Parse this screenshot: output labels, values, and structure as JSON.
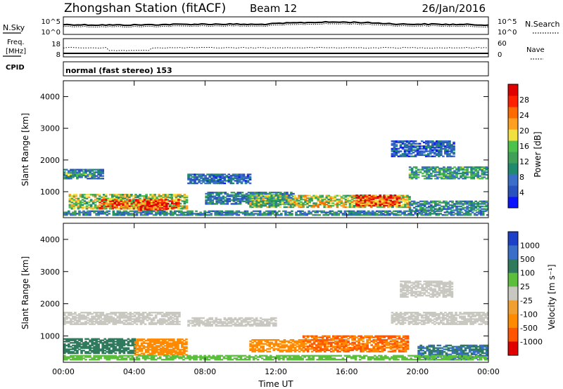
{
  "header": {
    "title": "Zhongshan Station (fitACF)",
    "beam": "Beam 12",
    "date": "26/Jan/2016"
  },
  "noise_panel": {
    "left_label": "N.Sky",
    "right_label": "N.Search",
    "left_ticks": [
      "10^5",
      "10^0"
    ],
    "right_ticks": [
      "10^5",
      "10^0"
    ]
  },
  "freq_panel": {
    "left_label_1": "Freq.",
    "left_label_2": "[MHz]",
    "right_label": "Nave",
    "left_ticks": [
      "18",
      "8"
    ],
    "right_ticks": [
      "60",
      "0"
    ]
  },
  "cpid": {
    "label": "CPID",
    "text": "normal (fast stereo) 153"
  },
  "colors": {
    "power_scale": [
      "#0a14ff",
      "#2a52be",
      "#3a6ec8",
      "#1f8a6e",
      "#3fa058",
      "#4cc24c",
      "#f0e040",
      "#ffa020",
      "#ff6a00",
      "#ff2000",
      "#e00000"
    ],
    "velocity_scale": [
      "#1e40c8",
      "#3a6ec8",
      "#2f7a5c",
      "#5bbf3c",
      "#c8c8c0",
      "#f0a030",
      "#ff8a00",
      "#ff5500",
      "#e00000"
    ]
  },
  "chart_data": [
    {
      "type": "heatmap",
      "name": "power",
      "ylabel": "Slant Range [km]",
      "yticks": [
        "4000",
        "3000",
        "2000",
        "1000"
      ],
      "ylim": [
        180,
        4500
      ],
      "xlim": [
        0,
        24
      ],
      "colorbar_label": "Power [dB]",
      "colorbar_ticks": [
        "28",
        "24",
        "20",
        "16",
        "12",
        "8",
        "4"
      ],
      "colorbar_range": [
        0,
        32
      ],
      "regions": [
        {
          "t0": 0.0,
          "t1": 2.2,
          "r0": 1400,
          "r1": 1700,
          "v": 8
        },
        {
          "t0": 0.0,
          "t1": 1.5,
          "r0": 1500,
          "r1": 1600,
          "v": 13
        },
        {
          "t0": 0.3,
          "t1": 7.0,
          "r0": 450,
          "r1": 900,
          "v": 16
        },
        {
          "t0": 2.0,
          "t1": 6.5,
          "r0": 450,
          "r1": 750,
          "v": 24
        },
        {
          "t0": 4.2,
          "t1": 5.8,
          "r0": 400,
          "r1": 700,
          "v": 29
        },
        {
          "t0": 7.0,
          "t1": 10.5,
          "r0": 1250,
          "r1": 1550,
          "v": 7
        },
        {
          "t0": 8.0,
          "t1": 13.0,
          "r0": 600,
          "r1": 1000,
          "v": 9
        },
        {
          "t0": 10.5,
          "t1": 13.0,
          "r0": 500,
          "r1": 900,
          "v": 15
        },
        {
          "t0": 13.0,
          "t1": 19.5,
          "r0": 500,
          "r1": 900,
          "v": 18
        },
        {
          "t0": 16.5,
          "t1": 19.0,
          "r0": 550,
          "r1": 900,
          "v": 27
        },
        {
          "t0": 18.5,
          "t1": 22.0,
          "r0": 2100,
          "r1": 2600,
          "v": 6
        },
        {
          "t0": 19.5,
          "t1": 24.0,
          "r0": 1400,
          "r1": 1800,
          "v": 12
        },
        {
          "t0": 19.5,
          "t1": 24.0,
          "r0": 400,
          "r1": 700,
          "v": 10
        },
        {
          "t0": 0.0,
          "t1": 24.0,
          "r0": 250,
          "r1": 400,
          "v": 9
        }
      ]
    },
    {
      "type": "heatmap",
      "name": "velocity",
      "ylabel": "Slant Range [km]",
      "yticks": [
        "4000",
        "3000",
        "2000",
        "1000"
      ],
      "ylim": [
        180,
        4500
      ],
      "xlim": [
        0,
        24
      ],
      "xlabel": "Time UT",
      "xticks": [
        "00:00",
        "04:00",
        "08:00",
        "12:00",
        "16:00",
        "20:00",
        "00:00"
      ],
      "colorbar_label": "Velocity [m s⁻¹]",
      "colorbar_ticks": [
        "1000",
        "500",
        "100",
        "25",
        "-25",
        "-100",
        "-500",
        "-1000"
      ],
      "regions": [
        {
          "t0": 0.0,
          "t1": 6.5,
          "r0": 1350,
          "r1": 1750,
          "v": 0
        },
        {
          "t0": 0.0,
          "t1": 4.0,
          "r0": 450,
          "r1": 900,
          "v": 150
        },
        {
          "t0": 4.0,
          "t1": 7.0,
          "r0": 400,
          "r1": 900,
          "v": -200
        },
        {
          "t0": 7.0,
          "t1": 12.0,
          "r0": 1300,
          "r1": 1550,
          "v": 0
        },
        {
          "t0": 10.5,
          "t1": 13.5,
          "r0": 500,
          "r1": 900,
          "v": -150
        },
        {
          "t0": 13.5,
          "t1": 19.5,
          "r0": 500,
          "r1": 1000,
          "v": -300
        },
        {
          "t0": 18.5,
          "t1": 24.0,
          "r0": 1350,
          "r1": 1750,
          "v": 0
        },
        {
          "t0": 19.0,
          "t1": 22.0,
          "r0": 2200,
          "r1": 2700,
          "v": 0
        },
        {
          "t0": 20.0,
          "t1": 24.0,
          "r0": 250,
          "r1": 700,
          "v": 300
        },
        {
          "t0": 0.0,
          "t1": 24.0,
          "r0": 250,
          "r1": 400,
          "v": 60
        }
      ]
    }
  ]
}
